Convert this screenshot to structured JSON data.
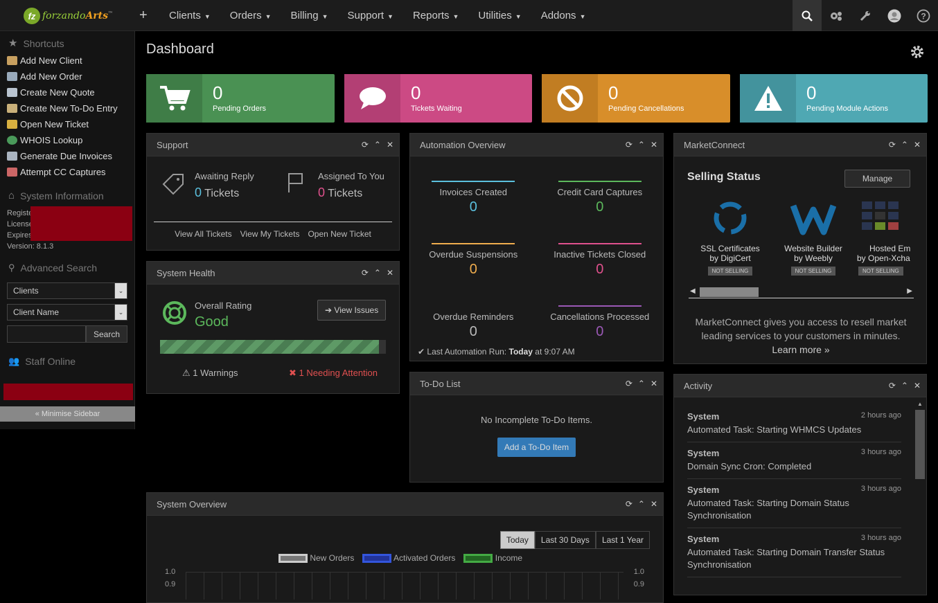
{
  "brand": {
    "logo_mark": "fz",
    "logo_text_a": "forzando",
    "logo_text_b": "Arts",
    "tm": "™"
  },
  "nav": {
    "plus": "+",
    "items": [
      "Clients",
      "Orders",
      "Billing",
      "Support",
      "Reports",
      "Utilities",
      "Addons"
    ]
  },
  "top_icons": [
    "search-icon",
    "settings-icon",
    "wrench-icon",
    "user-avatar-icon",
    "help-icon"
  ],
  "sidebar": {
    "shortcuts_title": "Shortcuts",
    "shortcuts": [
      "Add New Client",
      "Add New Order",
      "Create New Quote",
      "Create New To-Do Entry",
      "Open New Ticket",
      "WHOIS Lookup",
      "Generate Due Invoices",
      "Attempt CC Captures"
    ],
    "sysinfo_title": "System Information",
    "sysinfo_rows": [
      "Registe",
      "License",
      "Expires"
    ],
    "version": "Version: 8.1.3",
    "adv_title": "Advanced Search",
    "adv_select1": "Clients",
    "adv_select2": "Client Name",
    "adv_search_btn": "Search",
    "staff_title": "Staff Online",
    "minimise": "« Minimise Sidebar"
  },
  "dashboard": {
    "title": "Dashboard"
  },
  "stats": [
    {
      "num": "0",
      "label": "Pending Orders",
      "color": "#4a9153"
    },
    {
      "num": "0",
      "label": "Tickets Waiting",
      "color": "#cc4a84"
    },
    {
      "num": "0",
      "label": "Pending Cancellations",
      "color": "#d88e2a"
    },
    {
      "num": "0",
      "label": "Pending Module Actions",
      "color": "#4fa8b3"
    }
  ],
  "support": {
    "title": "Support",
    "awaiting_label": "Awaiting Reply",
    "awaiting_num": "0",
    "awaiting_unit": "Tickets",
    "assigned_label": "Assigned To You",
    "assigned_num": "0",
    "assigned_unit": "Tickets",
    "links": [
      "View All Tickets",
      "View My Tickets",
      "Open New Ticket"
    ]
  },
  "health": {
    "title": "System Health",
    "rating_label": "Overall Rating",
    "rating": "Good",
    "view_issues": "View Issues",
    "warnings": "1 Warnings",
    "attention": "1 Needing Attention",
    "progress": 0.97
  },
  "automation": {
    "title": "Automation Overview",
    "items": [
      {
        "label": "Invoices Created",
        "value": "0",
        "color": "#5bc0de"
      },
      {
        "label": "Credit Card Captures",
        "value": "0",
        "color": "#5cb85c"
      },
      {
        "label": "Overdue Suspensions",
        "value": "0",
        "color": "#f0ad4e"
      },
      {
        "label": "Inactive Tickets Closed",
        "value": "0",
        "color": "#e0518d"
      },
      {
        "label": "Overdue Reminders",
        "value": "0",
        "color": "#777777"
      },
      {
        "label": "Cancellations Processed",
        "value": "0",
        "color": "#9b59b6"
      }
    ],
    "last_run_prefix": "Last Automation Run:",
    "last_run_day": "Today",
    "last_run_time": "at 9:07 AM"
  },
  "market": {
    "title": "MarketConnect",
    "selling": "Selling Status",
    "manage": "Manage",
    "services": [
      {
        "name": "SSL Certificates",
        "by": "by DigiCert",
        "status": "NOT SELLING"
      },
      {
        "name": "Website Builder",
        "by": "by Weebly",
        "status": "NOT SELLING"
      },
      {
        "name": "Hosted Em",
        "by": "by Open-Xcha",
        "status": "NOT SELLING"
      }
    ],
    "desc": "MarketConnect gives you access to resell market leading services to your customers in minutes.",
    "learn": "Learn more »"
  },
  "todo": {
    "title": "To-Do List",
    "empty": "No Incomplete To-Do Items.",
    "add": "Add a To-Do Item"
  },
  "activity": {
    "title": "Activity",
    "items": [
      {
        "who": "System",
        "when": "2 hours ago",
        "what": "Automated Task: Starting WHMCS Updates"
      },
      {
        "who": "System",
        "when": "3 hours ago",
        "what": "Domain Sync Cron: Completed"
      },
      {
        "who": "System",
        "when": "3 hours ago",
        "what": "Automated Task: Starting Domain Status Synchronisation"
      },
      {
        "who": "System",
        "when": "3 hours ago",
        "what": "Automated Task: Starting Domain Transfer Status Synchronisation"
      }
    ]
  },
  "overview": {
    "title": "System Overview",
    "ranges": [
      "Today",
      "Last 30 Days",
      "Last 1 Year"
    ],
    "legend": [
      "New Orders",
      "Activated Orders",
      "Income"
    ],
    "y_ticks_left": [
      "1.0",
      "0.9"
    ],
    "y_ticks_right": [
      "1.0",
      "0.9"
    ]
  }
}
